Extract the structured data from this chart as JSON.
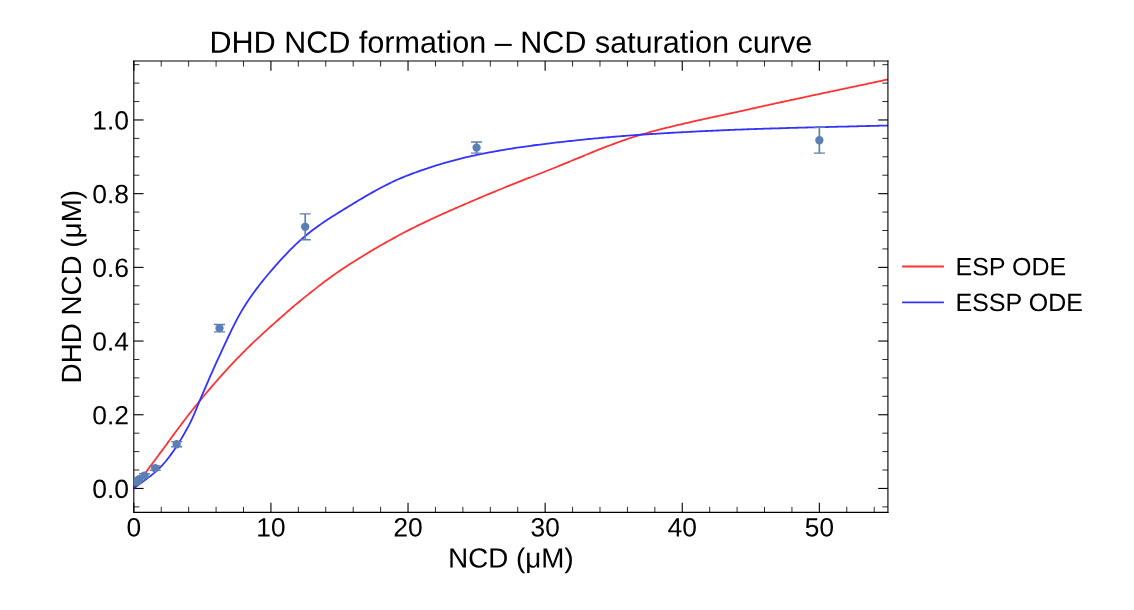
{
  "chart_data": {
    "type": "line",
    "title": "DHD NCD formation – NCD saturation curve",
    "xlabel": "NCD (μM)",
    "ylabel": "DHD NCD (μM)",
    "xlim": [
      0,
      55
    ],
    "ylim": [
      -0.065,
      1.16
    ],
    "xticks": [
      0,
      10,
      20,
      30,
      40,
      50
    ],
    "yticks": [
      {
        "value": 0,
        "label": "0.0"
      },
      {
        "value": 0.2,
        "label": "0.2"
      },
      {
        "value": 0.4,
        "label": "0.4"
      },
      {
        "value": 0.6,
        "label": "0.6"
      },
      {
        "value": 0.8,
        "label": "0.8"
      },
      {
        "value": 1.0,
        "label": "1.0"
      }
    ],
    "grid": false,
    "legend": "right",
    "line_style": "solid",
    "marker": "none",
    "series": [
      {
        "name": "ESP ODE",
        "color": "#ff3333",
        "x": [
          0,
          1,
          2,
          4,
          6,
          8,
          10,
          12.5,
          15,
          20,
          25,
          30,
          37,
          45,
          55
        ],
        "values": [
          0.0,
          0.05,
          0.1,
          0.2,
          0.29,
          0.37,
          0.44,
          0.52,
          0.59,
          0.7,
          0.785,
          0.86,
          0.96,
          1.03,
          1.11
        ]
      },
      {
        "name": "ESSP ODE",
        "color": "#3333ff",
        "x": [
          0,
          2,
          4,
          5,
          6,
          8,
          10,
          12.5,
          15,
          20,
          25,
          30,
          37,
          45,
          55
        ],
        "values": [
          0.0,
          0.06,
          0.17,
          0.255,
          0.34,
          0.49,
          0.59,
          0.685,
          0.75,
          0.85,
          0.905,
          0.935,
          0.96,
          0.975,
          0.985
        ]
      },
      {
        "type": "scatter",
        "color": "#5b7fb5",
        "marker": "circle",
        "x": [
          0.2,
          0.39,
          0.78,
          1.56,
          3.125,
          6.25,
          12.5,
          25,
          50
        ],
        "values": [
          0.018,
          0.025,
          0.035,
          0.055,
          0.12,
          0.435,
          0.71,
          0.925,
          0.945
        ],
        "errors": [
          0.004,
          0.004,
          0.005,
          0.006,
          0.007,
          0.01,
          0.035,
          0.015,
          0.035
        ]
      }
    ]
  }
}
